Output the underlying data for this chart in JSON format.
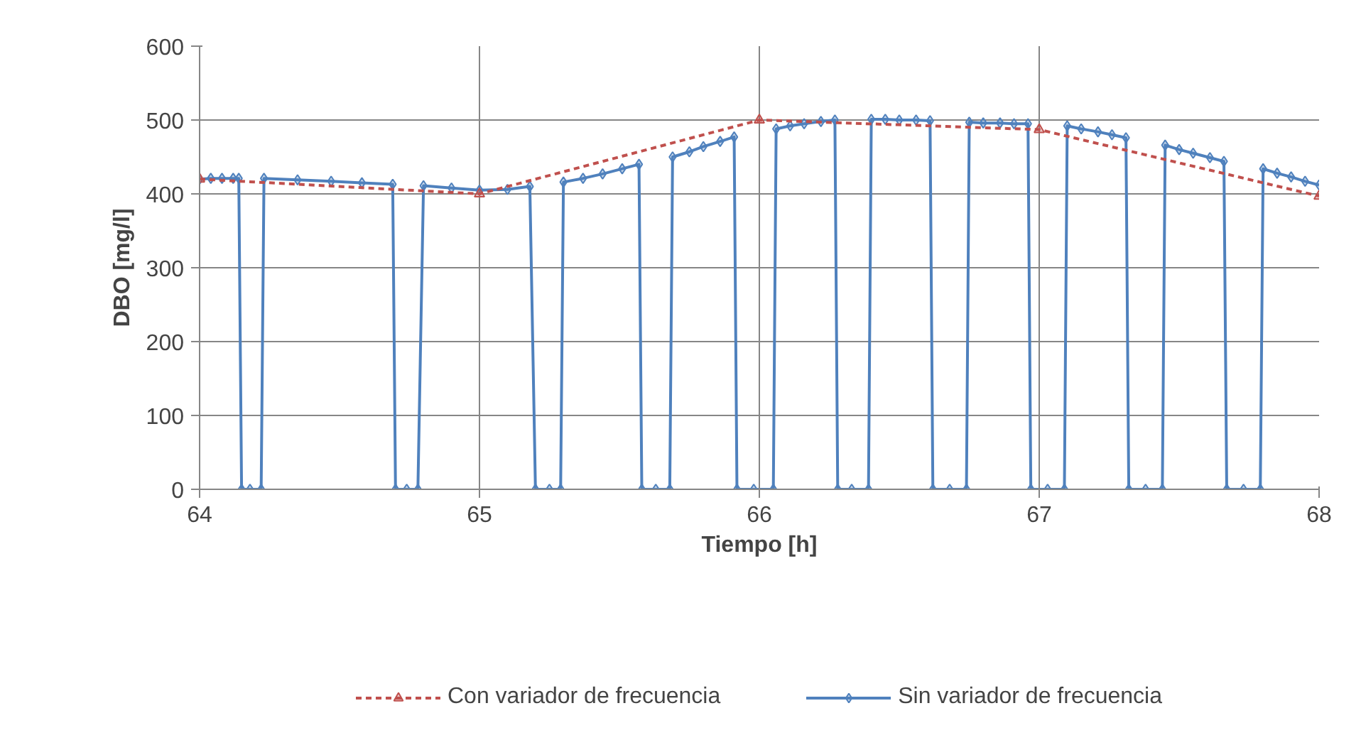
{
  "chart_data": {
    "type": "line",
    "xlabel": "Tiempo [h]",
    "ylabel": "DBO [mg/l]",
    "xlim": [
      64,
      68
    ],
    "xticks": [
      64,
      65,
      66,
      67,
      68
    ],
    "ylim": [
      0,
      600
    ],
    "yticks": [
      0,
      100,
      200,
      300,
      400,
      500,
      600
    ],
    "grid": true,
    "legend": "bottom",
    "series": [
      {
        "name": "Con variador de frecuencia",
        "color": "#c0504d",
        "marker": "triangle",
        "line_style": "dashed",
        "x": [
          64,
          65,
          66,
          67,
          68
        ],
        "values": [
          420,
          400,
          500,
          487,
          397
        ]
      },
      {
        "name": "Sin variador de frecuencia",
        "color": "#4f81bd",
        "marker": "diamond",
        "line_style": "solid",
        "x": [
          64.0,
          64.04,
          64.08,
          64.12,
          64.14,
          64.15,
          64.18,
          64.22,
          64.23,
          64.35,
          64.47,
          64.58,
          64.69,
          64.7,
          64.74,
          64.78,
          64.8,
          64.9,
          65.0,
          65.1,
          65.18,
          65.2,
          65.25,
          65.29,
          65.3,
          65.37,
          65.44,
          65.51,
          65.57,
          65.58,
          65.63,
          65.68,
          65.69,
          65.75,
          65.8,
          65.86,
          65.91,
          65.92,
          65.98,
          66.05,
          66.06,
          66.11,
          66.16,
          66.22,
          66.27,
          66.28,
          66.33,
          66.39,
          66.4,
          66.45,
          66.5,
          66.56,
          66.61,
          66.62,
          66.68,
          66.74,
          66.75,
          66.8,
          66.86,
          66.91,
          66.96,
          66.97,
          67.03,
          67.09,
          67.1,
          67.15,
          67.21,
          67.26,
          67.31,
          67.32,
          67.38,
          67.44,
          67.45,
          67.5,
          67.55,
          67.61,
          67.66,
          67.67,
          67.73,
          67.79,
          67.8,
          67.85,
          67.9,
          67.95,
          68.0
        ],
        "values": [
          420,
          421,
          421,
          421,
          421,
          0,
          0,
          0,
          421,
          419,
          417,
          415,
          413,
          0,
          0,
          0,
          411,
          408,
          405,
          406,
          410,
          0,
          0,
          0,
          416,
          421,
          427,
          434,
          440,
          0,
          0,
          0,
          450,
          457,
          464,
          471,
          477,
          0,
          0,
          0,
          488,
          492,
          495,
          498,
          500,
          0,
          0,
          0,
          501,
          501,
          500,
          500,
          499,
          0,
          0,
          0,
          497,
          496,
          496,
          495,
          495,
          0,
          0,
          0,
          492,
          488,
          484,
          480,
          476,
          0,
          0,
          0,
          466,
          460,
          455,
          449,
          444,
          0,
          0,
          0,
          434,
          428,
          423,
          417,
          412
        ]
      }
    ]
  }
}
